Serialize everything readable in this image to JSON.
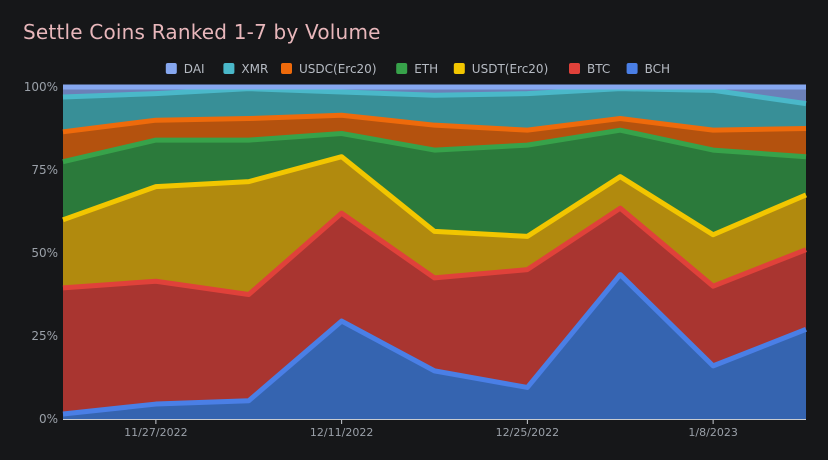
{
  "chart_data": {
    "type": "area",
    "stacked": true,
    "normalized": true,
    "title": "Settle Coins Ranked 1-7 by Volume",
    "x": [
      0,
      1,
      2,
      3,
      4,
      5,
      6,
      7,
      8
    ],
    "xtick_positions": [
      1,
      3,
      5,
      7
    ],
    "xtick_labels": [
      "11/27/2022",
      "12/11/2022",
      "12/25/2022",
      "1/8/2023"
    ],
    "ylim": [
      0,
      100
    ],
    "yticks": [
      0,
      25,
      50,
      75,
      100
    ],
    "ytick_labels": [
      "0%",
      "25%",
      "50%",
      "75%",
      "100%"
    ],
    "legend_position": "top",
    "series": [
      {
        "name": "BCH",
        "color": "#4a7fe6",
        "fill": "#3564b0",
        "values": [
          1.5,
          4.5,
          5.5,
          29.5,
          14.5,
          9.5,
          43.5,
          16.0,
          27.0
        ]
      },
      {
        "name": "BTC",
        "color": "#e0413a",
        "fill": "#a93530",
        "values": [
          38.0,
          37.0,
          32.0,
          32.5,
          28.0,
          35.5,
          20.0,
          24.0,
          24.0
        ]
      },
      {
        "name": "USDT(Erc20)",
        "color": "#f2c600",
        "fill": "#b18a0e",
        "values": [
          20.5,
          28.5,
          34.0,
          17.0,
          14.0,
          10.0,
          9.5,
          15.5,
          16.5
        ]
      },
      {
        "name": "ETH",
        "color": "#37a24a",
        "fill": "#2b7a3b",
        "values": [
          17.5,
          14.0,
          12.5,
          7.0,
          24.5,
          27.5,
          14.0,
          25.5,
          11.5
        ]
      },
      {
        "name": "USDC(Erc20)",
        "color": "#ee6a0b",
        "fill": "#b4520e",
        "values": [
          9.0,
          6.0,
          6.5,
          5.5,
          7.5,
          4.5,
          3.5,
          6.0,
          8.5
        ]
      },
      {
        "name": "XMR",
        "color": "#4ab8c9",
        "fill": "#388f97",
        "values": [
          10.5,
          8.0,
          9.0,
          7.0,
          9.0,
          11.0,
          9.0,
          12.0,
          7.5
        ]
      },
      {
        "name": "DAI",
        "color": "#86a7ef",
        "fill": "#6b80b8",
        "values": [
          3.0,
          2.0,
          0.5,
          1.5,
          2.5,
          2.0,
          0.5,
          1.0,
          5.0
        ]
      }
    ],
    "legend_order": [
      "DAI",
      "XMR",
      "USDC(Erc20)",
      "ETH",
      "USDT(Erc20)",
      "BTC",
      "BCH"
    ]
  }
}
